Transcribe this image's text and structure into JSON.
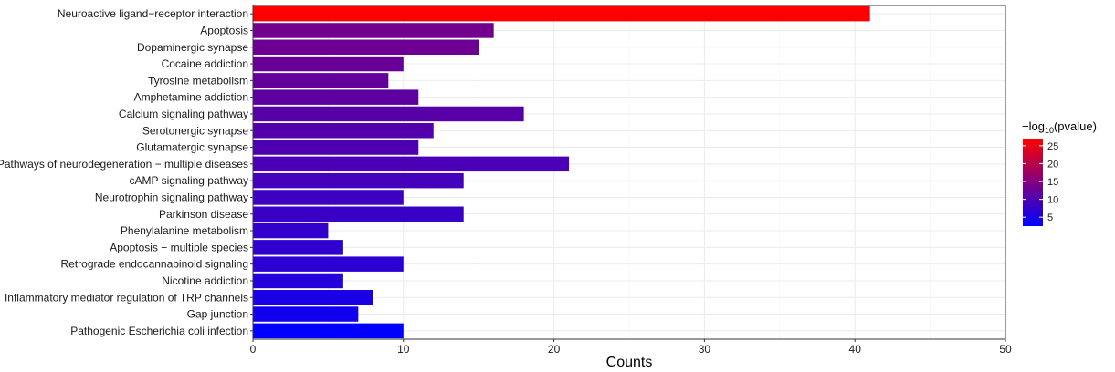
{
  "chart_data": {
    "type": "bar",
    "orientation": "horizontal",
    "categories": [
      "Neuroactive ligand−receptor interaction",
      "Apoptosis",
      "Dopaminergic synapse",
      "Cocaine addiction",
      "Tyrosine metabolism",
      "Amphetamine addiction",
      "Calcium signaling pathway",
      "Serotonergic synapse",
      "Glutamatergic synapse",
      "Pathways of neurodegeneration − multiple diseases",
      "cAMP signaling pathway",
      "Neurotrophin signaling pathway",
      "Parkinson disease",
      "Phenylalanine metabolism",
      "Apoptosis − multiple species",
      "Retrograde endocannabinoid signaling",
      "Nicotine addiction",
      "Inflammatory mediator regulation of TRP channels",
      "Gap junction",
      "Pathogenic Escherichia coli infection"
    ],
    "values": [
      41,
      16,
      15,
      10,
      9,
      11,
      18,
      12,
      11,
      21,
      14,
      10,
      14,
      5,
      6,
      10,
      6,
      8,
      7,
      10
    ],
    "color_values": [
      27,
      13.5,
      13,
      12.5,
      12,
      11.5,
      11,
      10.5,
      10,
      9.5,
      9,
      8.5,
      8,
      7.5,
      7,
      6.5,
      6,
      5,
      4,
      2.5
    ],
    "xlabel": "Counts",
    "xlim": [
      0,
      50
    ],
    "xticks": [
      0,
      10,
      20,
      30,
      40,
      50
    ],
    "legend": {
      "title_prefix": "−log",
      "title_sub": "10",
      "title_suffix": "(pvalue)",
      "ticks": [
        5,
        10,
        15,
        20,
        25
      ],
      "range": [
        2.5,
        27
      ],
      "low_color": "#0000ff",
      "high_color": "#ff0000",
      "placement": "right"
    },
    "grid": true,
    "panel_background": "#ffffff",
    "grid_color": "#ebebeb"
  }
}
